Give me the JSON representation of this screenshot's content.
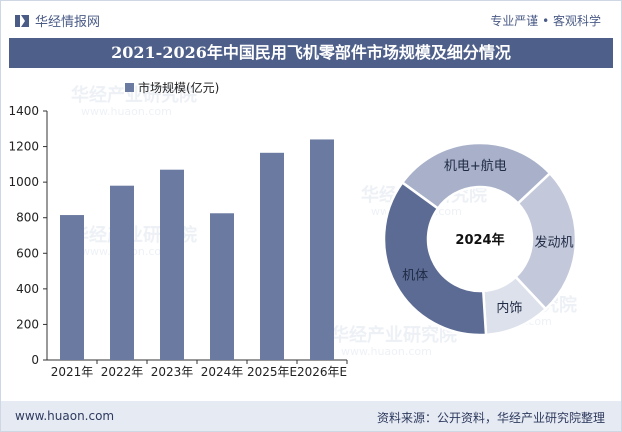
{
  "header": {
    "brand": "华经情报网",
    "tagline": "专业严谨 • 客观科学"
  },
  "title": "2021-2026年中国民用飞机零部件市场规模及细分情况",
  "footer": {
    "website": "www.huaon.com",
    "source": "资料来源：公开资料，华经产业研究院整理"
  },
  "watermark": {
    "name": "华经产业研究院",
    "url": "www.huaon.com"
  },
  "colors": {
    "bar": "#6b7aa1",
    "title_bg": "#4e5f8a",
    "footer_bg": "#e6eaf3"
  },
  "chart_data": [
    {
      "type": "bar",
      "categories": [
        "2021年",
        "2022年",
        "2023年",
        "2024年",
        "2025年E",
        "2026年E"
      ],
      "series": [
        {
          "name": "市场规模(亿元)",
          "values": [
            815,
            980,
            1070,
            825,
            1165,
            1240
          ]
        }
      ],
      "ylim": [
        0,
        1400
      ],
      "yticks": [
        0,
        200,
        400,
        600,
        800,
        1000,
        1200,
        1400
      ],
      "legend": "top-left",
      "grid": false
    },
    {
      "type": "pie",
      "variant": "donut",
      "center_label": "2024年",
      "slices": [
        {
          "label": "机电+航电",
          "value": 28,
          "color": "#a8b1c9"
        },
        {
          "label": "发动机",
          "value": 25,
          "color": "#c3c9db"
        },
        {
          "label": "内饰",
          "value": 11,
          "color": "#dde1eb"
        },
        {
          "label": "机体",
          "value": 36,
          "color": "#5c6b93"
        }
      ]
    }
  ]
}
